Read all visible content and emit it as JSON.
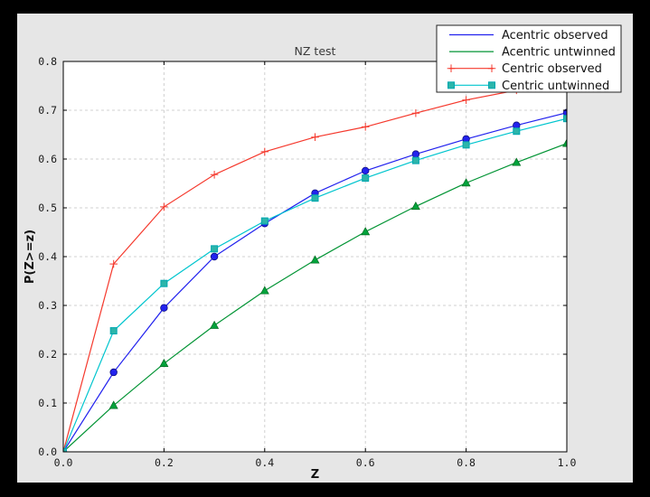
{
  "window": {
    "background": "#000000",
    "figure_background": "#e6e6e6",
    "plot_background": "#ffffff",
    "frame_color": "#000000",
    "grid_color": "#d0d0d0"
  },
  "chart_data": {
    "type": "line",
    "title": "NZ test",
    "xlabel": "Z",
    "ylabel": "P(Z>=z)",
    "xlim": [
      0.0,
      1.0
    ],
    "ylim": [
      0.0,
      0.8
    ],
    "xticks": [
      "0.0",
      "0.2",
      "0.4",
      "0.6",
      "0.8",
      "1.0"
    ],
    "yticks": [
      "0.0",
      "0.1",
      "0.2",
      "0.3",
      "0.4",
      "0.5",
      "0.6",
      "0.7",
      "0.8"
    ],
    "grid": true,
    "grid_style": "dashed",
    "legend_position": "upper right",
    "x": [
      0.0,
      0.1,
      0.2,
      0.3,
      0.4,
      0.5,
      0.6,
      0.7,
      0.8,
      0.9,
      1.0
    ],
    "series": [
      {
        "name": "Acentric observed",
        "color": "#2222ee",
        "marker": "circle",
        "marker_fill": "#2222ee",
        "marker_edge": "#101080",
        "legend_end_markers": false,
        "values": [
          0.0,
          0.163,
          0.295,
          0.4,
          0.468,
          0.53,
          0.576,
          0.61,
          0.641,
          0.669,
          0.695
        ]
      },
      {
        "name": "Acentric untwinned",
        "color": "#029434",
        "marker": "triangle",
        "marker_fill": "#02a33c",
        "marker_edge": "#026b20",
        "legend_end_markers": false,
        "values": [
          0.0,
          0.095,
          0.181,
          0.259,
          0.33,
          0.393,
          0.451,
          0.503,
          0.551,
          0.593,
          0.632
        ]
      },
      {
        "name": "Centric observed",
        "color": "#f5392d",
        "marker": "plus",
        "marker_fill": "#f5392d",
        "marker_edge": "#f5392d",
        "legend_end_markers": true,
        "values": [
          0.0,
          0.385,
          0.502,
          0.568,
          0.615,
          0.645,
          0.666,
          0.694,
          0.721,
          0.741,
          0.757
        ]
      },
      {
        "name": "Centric untwinned",
        "color": "#00c5ce",
        "marker": "square",
        "marker_fill": "#2cb5aa",
        "marker_edge": "#00a7b0",
        "legend_end_markers": true,
        "values": [
          0.0,
          0.248,
          0.345,
          0.416,
          0.473,
          0.52,
          0.561,
          0.597,
          0.629,
          0.657,
          0.683
        ]
      }
    ]
  }
}
